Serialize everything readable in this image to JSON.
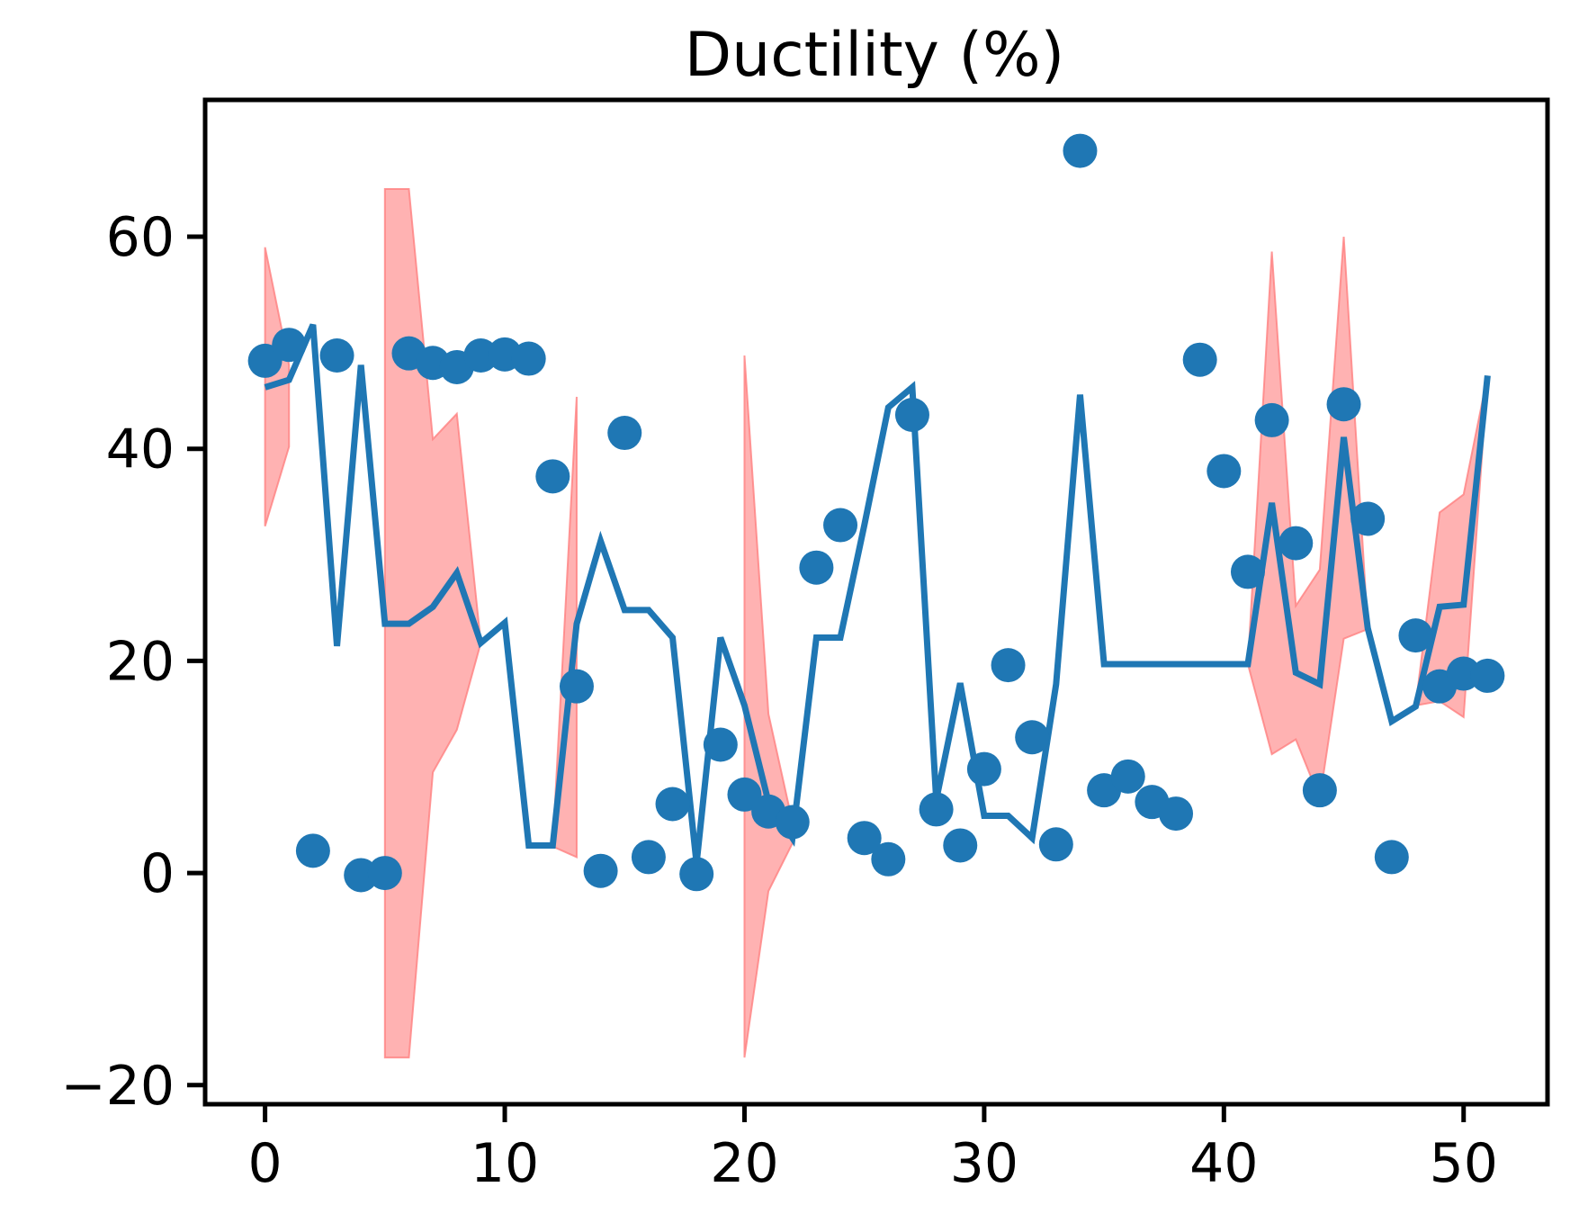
{
  "chart_data": {
    "type": "line",
    "title": "Ductility (%)",
    "xlabel": "",
    "ylabel": "",
    "xlim": [
      -2.5,
      53.5
    ],
    "ylim": [
      -21.8,
      72.9
    ],
    "xticks": [
      0,
      10,
      20,
      30,
      40,
      50
    ],
    "yticks": [
      -20,
      0,
      20,
      40,
      60
    ],
    "ytick_labels": [
      "−20",
      "0",
      "20",
      "40",
      "60"
    ],
    "grid": false,
    "legend": "none",
    "colors": {
      "line": "#1f77b4",
      "scatter": "#1f77b4",
      "band": "#ff7f7f"
    },
    "x": [
      0,
      1,
      2,
      3,
      4,
      5,
      6,
      7,
      8,
      9,
      10,
      11,
      12,
      13,
      14,
      15,
      16,
      17,
      18,
      19,
      20,
      21,
      22,
      23,
      24,
      25,
      26,
      27,
      28,
      29,
      30,
      31,
      32,
      33,
      34,
      35,
      36,
      37,
      38,
      39,
      40,
      41,
      42,
      43,
      44,
      45,
      46,
      47,
      48,
      49,
      50,
      51
    ],
    "series": [
      {
        "kind": "scatter",
        "values": [
          48.3,
          49.8,
          2.1,
          48.8,
          -0.2,
          0.0,
          49.0,
          48.1,
          47.7,
          48.8,
          48.9,
          48.5,
          37.4,
          17.6,
          0.2,
          41.5,
          1.5,
          6.5,
          -0.1,
          12.1,
          7.4,
          5.8,
          4.8,
          28.8,
          32.8,
          3.3,
          1.3,
          43.2,
          6.0,
          2.6,
          9.8,
          19.6,
          12.8,
          2.7,
          68.1,
          7.8,
          9.1,
          6.7,
          5.6,
          48.4,
          37.9,
          28.4,
          42.7,
          31.1,
          7.8,
          44.2,
          33.4,
          1.5,
          22.4,
          17.6,
          18.8,
          18.6
        ]
      },
      {
        "kind": "line",
        "values": [
          45.8,
          46.5,
          51.7,
          21.4,
          47.9,
          23.5,
          23.5,
          25.1,
          28.3,
          21.7,
          23.6,
          2.6,
          2.6,
          23.5,
          31.3,
          24.8,
          24.8,
          22.2,
          0.9,
          22.2,
          15.8,
          6.7,
          3.3,
          22.2,
          22.2,
          32.8,
          43.9,
          45.8,
          6.9,
          17.9,
          5.4,
          5.4,
          3.3,
          17.8,
          45.1,
          19.7,
          19.7,
          19.7,
          19.7,
          19.7,
          19.7,
          19.7,
          34.9,
          18.9,
          17.8,
          41.1,
          23.1,
          14.3,
          15.7,
          25.1,
          25.3,
          46.9
        ]
      },
      {
        "kind": "band",
        "lower": [
          32.7,
          40.2,
          null,
          null,
          null,
          -17.4,
          -17.4,
          9.5,
          13.5,
          21.7,
          null,
          null,
          2.5,
          1.5,
          null,
          null,
          null,
          null,
          null,
          null,
          -17.4,
          -1.7,
          2.8,
          null,
          null,
          null,
          null,
          null,
          null,
          null,
          null,
          null,
          null,
          null,
          null,
          null,
          null,
          null,
          null,
          null,
          null,
          19.7,
          11.2,
          12.6,
          7.0,
          22.1,
          23.0,
          null,
          15.8,
          16.2,
          14.7,
          46.9
        ],
        "upper": [
          59.0,
          47.9,
          null,
          null,
          null,
          64.5,
          64.5,
          40.9,
          43.3,
          21.7,
          null,
          null,
          2.5,
          44.9,
          null,
          null,
          null,
          null,
          null,
          null,
          48.8,
          15.0,
          4.8,
          null,
          null,
          null,
          null,
          null,
          null,
          null,
          null,
          null,
          null,
          null,
          null,
          null,
          null,
          null,
          null,
          null,
          null,
          19.7,
          58.6,
          25.2,
          28.6,
          60.0,
          23.2,
          null,
          15.8,
          34.0,
          35.7,
          46.9
        ]
      }
    ]
  }
}
